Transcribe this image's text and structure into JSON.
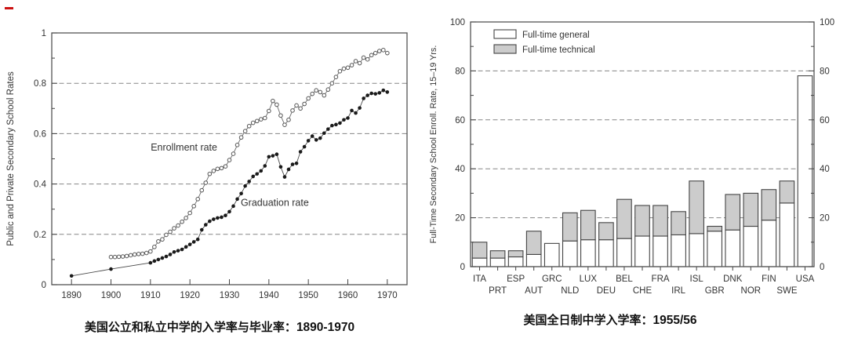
{
  "page": {
    "background": "#ffffff",
    "red_mark_color": "#cc1111"
  },
  "captions": {
    "left": {
      "text": "美国公立和私立中学的入学率与毕业率：",
      "value": "1890-1970"
    },
    "right": {
      "text": "美国全日制中学入学率：",
      "value": "1955/56"
    }
  },
  "chart_data": [
    {
      "type": "line",
      "title": "",
      "xlabel": "",
      "ylabel": "Public and Private Secondary School Rates",
      "xlim": [
        1885,
        1975
      ],
      "ylim": [
        0,
        1
      ],
      "xticks": [
        1890,
        1900,
        1910,
        1920,
        1930,
        1940,
        1950,
        1960,
        1970
      ],
      "yticks": [
        0,
        0.2,
        0.4,
        0.6,
        0.8,
        1
      ],
      "ytick_labels": [
        "0",
        "0.2",
        "0.4",
        "0.6",
        "0.8",
        "1"
      ],
      "yticks_minor": [
        0.1,
        0.3,
        0.5,
        0.7,
        0.9
      ],
      "grid_y": [
        0.2,
        0.4,
        0.6,
        0.8
      ],
      "legend_position": "none",
      "series": [
        {
          "name": "Enrollment rate",
          "marker": "open-circle",
          "line_color": "#6a6a6a",
          "marker_stroke": "#555555",
          "marker_fill": "#ffffff",
          "points": [
            [
              1900,
              0.11
            ],
            [
              1901,
              0.11
            ],
            [
              1902,
              0.111
            ],
            [
              1903,
              0.112
            ],
            [
              1904,
              0.114
            ],
            [
              1905,
              0.117
            ],
            [
              1906,
              0.12
            ],
            [
              1907,
              0.122
            ],
            [
              1908,
              0.123
            ],
            [
              1909,
              0.126
            ],
            [
              1910,
              0.132
            ],
            [
              1911,
              0.15
            ],
            [
              1912,
              0.172
            ],
            [
              1913,
              0.18
            ],
            [
              1914,
              0.198
            ],
            [
              1915,
              0.21
            ],
            [
              1916,
              0.224
            ],
            [
              1917,
              0.235
            ],
            [
              1918,
              0.25
            ],
            [
              1919,
              0.265
            ],
            [
              1920,
              0.285
            ],
            [
              1921,
              0.312
            ],
            [
              1922,
              0.34
            ],
            [
              1923,
              0.375
            ],
            [
              1924,
              0.405
            ],
            [
              1925,
              0.44
            ],
            [
              1926,
              0.452
            ],
            [
              1927,
              0.46
            ],
            [
              1928,
              0.463
            ],
            [
              1929,
              0.47
            ],
            [
              1930,
              0.495
            ],
            [
              1931,
              0.52
            ],
            [
              1932,
              0.555
            ],
            [
              1933,
              0.585
            ],
            [
              1934,
              0.61
            ],
            [
              1935,
              0.63
            ],
            [
              1936,
              0.643
            ],
            [
              1937,
              0.65
            ],
            [
              1938,
              0.657
            ],
            [
              1939,
              0.662
            ],
            [
              1940,
              0.69
            ],
            [
              1941,
              0.73
            ],
            [
              1942,
              0.715
            ],
            [
              1943,
              0.672
            ],
            [
              1944,
              0.635
            ],
            [
              1945,
              0.655
            ],
            [
              1946,
              0.692
            ],
            [
              1947,
              0.712
            ],
            [
              1948,
              0.7
            ],
            [
              1949,
              0.718
            ],
            [
              1950,
              0.74
            ],
            [
              1951,
              0.758
            ],
            [
              1952,
              0.772
            ],
            [
              1953,
              0.765
            ],
            [
              1954,
              0.752
            ],
            [
              1955,
              0.775
            ],
            [
              1956,
              0.8
            ],
            [
              1957,
              0.825
            ],
            [
              1958,
              0.848
            ],
            [
              1959,
              0.858
            ],
            [
              1960,
              0.862
            ],
            [
              1961,
              0.872
            ],
            [
              1962,
              0.888
            ],
            [
              1963,
              0.88
            ],
            [
              1964,
              0.902
            ],
            [
              1965,
              0.895
            ],
            [
              1966,
              0.912
            ],
            [
              1967,
              0.92
            ],
            [
              1968,
              0.928
            ],
            [
              1969,
              0.932
            ],
            [
              1970,
              0.92
            ]
          ]
        },
        {
          "name": "Graduation rate",
          "marker": "filled-circle",
          "line_color": "#4a4a4a",
          "marker_stroke": "none",
          "marker_fill": "#1a1a1a",
          "points": [
            [
              1890,
              0.035
            ],
            [
              1900,
              0.062
            ],
            [
              1910,
              0.087
            ],
            [
              1911,
              0.094
            ],
            [
              1912,
              0.1
            ],
            [
              1913,
              0.106
            ],
            [
              1914,
              0.112
            ],
            [
              1915,
              0.12
            ],
            [
              1916,
              0.13
            ],
            [
              1917,
              0.135
            ],
            [
              1918,
              0.14
            ],
            [
              1919,
              0.15
            ],
            [
              1920,
              0.16
            ],
            [
              1921,
              0.17
            ],
            [
              1922,
              0.18
            ],
            [
              1923,
              0.218
            ],
            [
              1924,
              0.238
            ],
            [
              1925,
              0.252
            ],
            [
              1926,
              0.26
            ],
            [
              1927,
              0.265
            ],
            [
              1928,
              0.268
            ],
            [
              1929,
              0.275
            ],
            [
              1930,
              0.29
            ],
            [
              1931,
              0.312
            ],
            [
              1932,
              0.34
            ],
            [
              1933,
              0.362
            ],
            [
              1934,
              0.392
            ],
            [
              1935,
              0.41
            ],
            [
              1936,
              0.43
            ],
            [
              1937,
              0.44
            ],
            [
              1938,
              0.452
            ],
            [
              1939,
              0.472
            ],
            [
              1940,
              0.508
            ],
            [
              1941,
              0.512
            ],
            [
              1942,
              0.518
            ],
            [
              1943,
              0.468
            ],
            [
              1944,
              0.428
            ],
            [
              1945,
              0.458
            ],
            [
              1946,
              0.478
            ],
            [
              1947,
              0.482
            ],
            [
              1948,
              0.528
            ],
            [
              1949,
              0.548
            ],
            [
              1950,
              0.572
            ],
            [
              1951,
              0.59
            ],
            [
              1952,
              0.575
            ],
            [
              1953,
              0.582
            ],
            [
              1954,
              0.602
            ],
            [
              1955,
              0.618
            ],
            [
              1956,
              0.632
            ],
            [
              1957,
              0.636
            ],
            [
              1958,
              0.642
            ],
            [
              1959,
              0.655
            ],
            [
              1960,
              0.662
            ],
            [
              1961,
              0.692
            ],
            [
              1962,
              0.682
            ],
            [
              1963,
              0.702
            ],
            [
              1964,
              0.74
            ],
            [
              1965,
              0.752
            ],
            [
              1966,
              0.76
            ],
            [
              1967,
              0.758
            ],
            [
              1968,
              0.762
            ],
            [
              1969,
              0.772
            ],
            [
              1970,
              0.765
            ]
          ]
        }
      ],
      "annotations": [
        {
          "text": "Enrollment rate",
          "x": 1918.5,
          "y": 0.545
        },
        {
          "text": "Graduation rate",
          "x": 1941.5,
          "y": 0.325
        }
      ]
    },
    {
      "type": "stacked-bar",
      "title": "",
      "xlabel": "",
      "ylabel": "Full-Time Secondary School Enroll. Rate, 15–19 Yrs.",
      "ylim": [
        0,
        100
      ],
      "yticks": [
        0,
        20,
        40,
        60,
        80,
        100
      ],
      "yticks_minor": [
        10,
        30,
        50,
        70,
        90
      ],
      "grid_y": [
        20,
        40,
        60,
        80
      ],
      "mirror_right_axis": true,
      "legend_position": "top-left",
      "border_color": "#444444",
      "categories": [
        "ITA",
        "PRT",
        "ESP",
        "AUT",
        "GRC",
        "NLD",
        "LUX",
        "DEU",
        "BEL",
        "CHE",
        "FRA",
        "IRL",
        "ISL",
        "GBR",
        "DNK",
        "NOR",
        "FIN",
        "SWE",
        "USA"
      ],
      "series": [
        {
          "name": "Full-time general",
          "color": "#ffffff",
          "values": [
            3.5,
            3.5,
            4,
            5,
            9.5,
            10.5,
            11,
            11,
            11.5,
            12.5,
            12.5,
            13,
            13.5,
            14.5,
            15,
            16.5,
            19,
            26,
            78
          ]
        },
        {
          "name": "Full-time technical",
          "color": "#cccccc",
          "values": [
            6.5,
            3,
            2.5,
            9.5,
            0,
            11.5,
            12,
            7,
            16,
            12.5,
            12.5,
            9.5,
            21.5,
            2,
            14.5,
            13.5,
            12.5,
            9,
            0
          ]
        }
      ]
    }
  ]
}
